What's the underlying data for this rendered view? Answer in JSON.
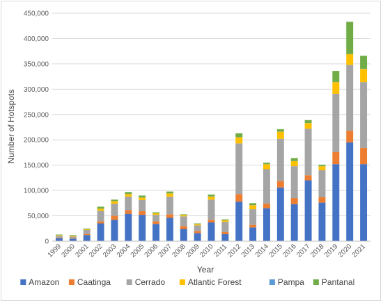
{
  "chart_data": {
    "type": "bar",
    "stacked": true,
    "title": "",
    "xlabel": "Year",
    "ylabel": "Number of Hotspots",
    "ylim": [
      0,
      450000
    ],
    "yticks": [
      "0",
      "50,000",
      "100,000",
      "150,000",
      "200,000",
      "250,000",
      "300,000",
      "350,000",
      "400,000",
      "450,000"
    ],
    "grid": true,
    "legend_position": "bottom",
    "categories": [
      "1999",
      "2000",
      "2001",
      "2002",
      "2003",
      "2004",
      "2005",
      "2006",
      "2007",
      "2008",
      "2009",
      "2010",
      "2011",
      "2012",
      "2013",
      "2014",
      "2015",
      "2016",
      "2017",
      "2018",
      "2019",
      "2020",
      "2021"
    ],
    "series": [
      {
        "name": "Amazon",
        "color": "#4472C4",
        "values": [
          6000,
          5000,
          12000,
          35000,
          42000,
          54000,
          52000,
          34000,
          46000,
          24000,
          16000,
          37000,
          14000,
          78000,
          27000,
          65000,
          106000,
          73000,
          120000,
          76000,
          152000,
          195000,
          152000
        ]
      },
      {
        "name": "Caatinga",
        "color": "#ED7D31",
        "values": [
          1000,
          1000,
          2000,
          4000,
          8000,
          7000,
          7000,
          5000,
          7000,
          6000,
          4000,
          5000,
          4000,
          15000,
          5000,
          9000,
          13000,
          12000,
          10000,
          11000,
          24000,
          23000,
          32000
        ]
      },
      {
        "name": "Cerrado",
        "color": "#A5A5A5",
        "values": [
          3000,
          3000,
          8000,
          21000,
          24000,
          27000,
          22000,
          13000,
          35000,
          19000,
          11000,
          40000,
          20000,
          100000,
          31000,
          68000,
          83000,
          63000,
          92000,
          53000,
          115000,
          130000,
          130000
        ]
      },
      {
        "name": "Atlantic Forest",
        "color": "#FFC000",
        "values": [
          1500,
          1500,
          1500,
          4000,
          5000,
          5000,
          5000,
          3000,
          6000,
          2500,
          2500,
          6000,
          3000,
          12000,
          8000,
          10000,
          14000,
          10000,
          11000,
          8000,
          23000,
          21000,
          26000
        ]
      },
      {
        "name": "Pampa",
        "color": "#5B9BD5",
        "values": [
          300,
          300,
          300,
          300,
          300,
          300,
          300,
          300,
          300,
          300,
          300,
          300,
          300,
          300,
          300,
          300,
          300,
          300,
          300,
          300,
          300,
          300,
          300
        ]
      },
      {
        "name": "Pantanal",
        "color": "#70AD47",
        "values": [
          1200,
          1200,
          1200,
          3700,
          2700,
          3700,
          3700,
          1700,
          3700,
          1200,
          1200,
          3700,
          1700,
          7700,
          3700,
          2700,
          4700,
          5700,
          5700,
          2700,
          21700,
          63700,
          25700
        ]
      }
    ]
  }
}
